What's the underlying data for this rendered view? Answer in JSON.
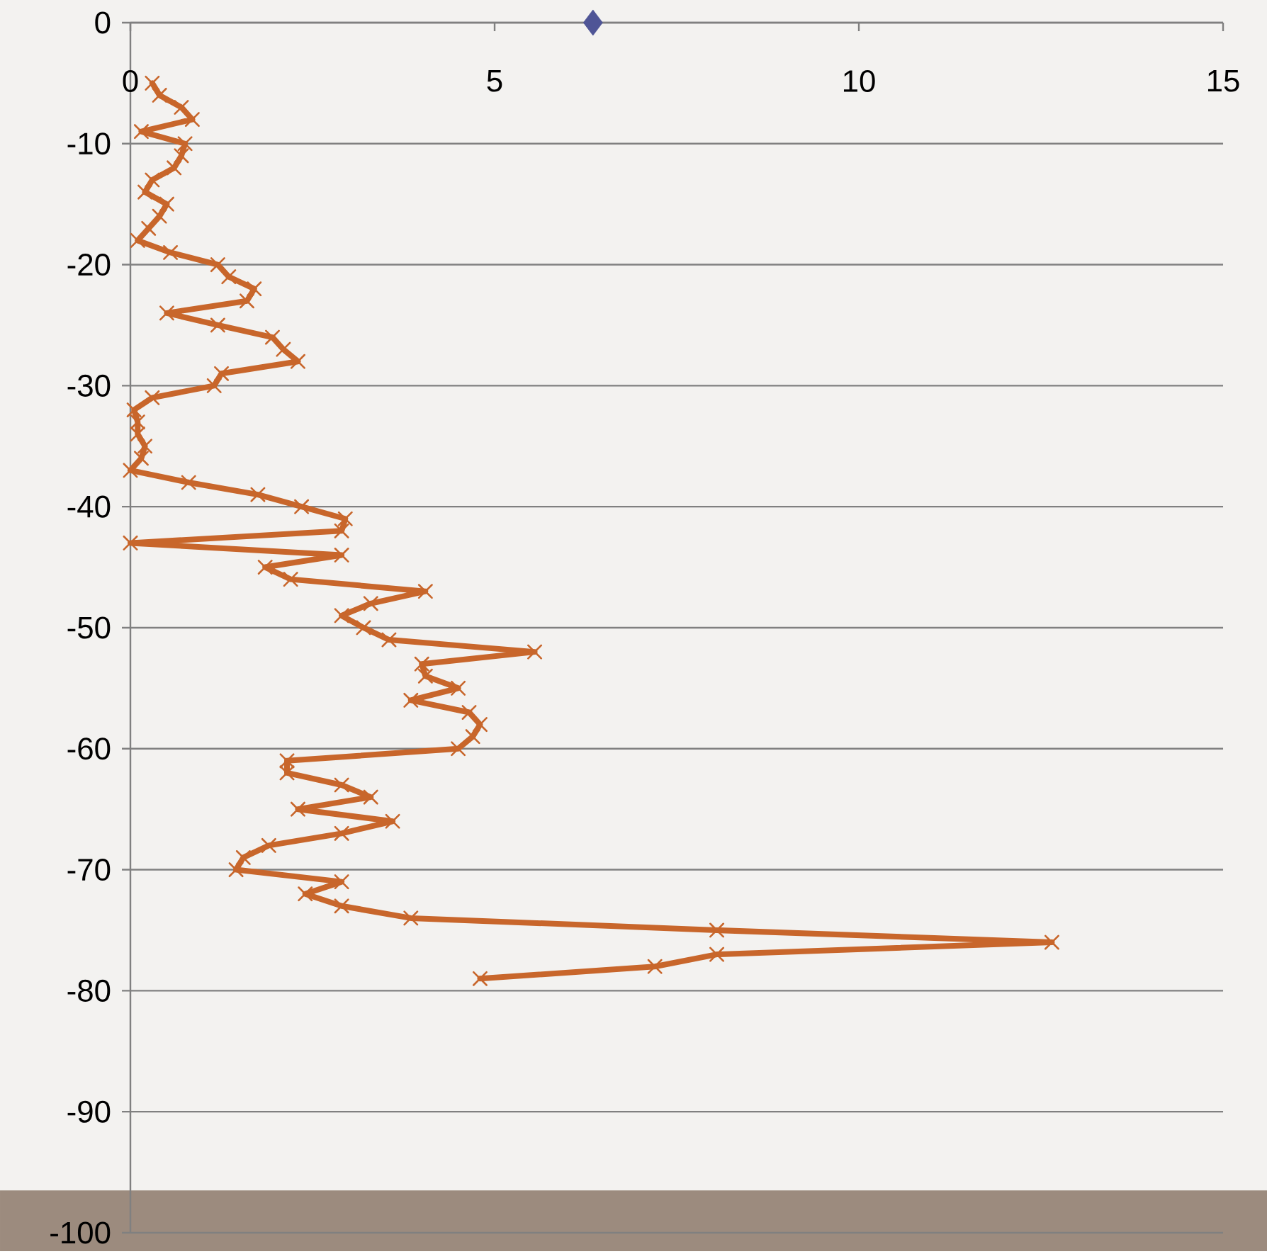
{
  "chart_data": {
    "type": "line",
    "series": [
      {
        "color": "#c8662b",
        "marker": "cross",
        "line_style": "solid",
        "x": [
          0.3,
          0.4,
          0.7,
          0.85,
          0.15,
          0.75,
          0.7,
          0.6,
          0.3,
          0.2,
          0.5,
          0.4,
          0.25,
          0.1,
          0.55,
          1.2,
          1.35,
          1.7,
          1.6,
          0.5,
          1.2,
          1.95,
          2.1,
          2.3,
          1.25,
          1.15,
          0.3,
          0.05,
          0.1,
          0.1,
          0.2,
          0.15,
          0,
          0.8,
          1.75,
          2.35,
          2.95,
          2.9,
          0,
          2.9,
          1.85,
          2.2,
          4.05,
          3.3,
          2.9,
          3.2,
          3.55,
          5.55,
          4.0,
          4.05,
          4.5,
          3.85,
          4.65,
          4.8,
          4.7,
          4.5,
          2.15,
          2.15,
          2.9,
          3.3,
          2.3,
          3.6,
          2.9,
          1.9,
          1.55,
          1.45,
          2.9,
          2.4,
          2.9,
          3.85,
          8.05,
          12.65,
          8.05,
          7.2,
          4.8
        ],
        "values": [
          -5,
          -6,
          -7,
          -8,
          -9,
          -10,
          -11,
          -12,
          -13,
          -14,
          -15,
          -16,
          -17,
          -18,
          -19,
          -20,
          -21,
          -22,
          -23,
          -24,
          -25,
          -26,
          -27,
          -28,
          -29,
          -30,
          -31,
          -32,
          -33,
          -34,
          -35,
          -36,
          -37,
          -38,
          -39,
          -40,
          -41,
          -42,
          -43,
          -44,
          -45,
          -46,
          -47,
          -48,
          -49,
          -50,
          -51,
          -52,
          -53,
          -54,
          -55,
          -56,
          -57,
          -58,
          -59,
          -60,
          -61,
          -62,
          -63,
          -64,
          -65,
          -66,
          -67,
          -68,
          -69,
          -70,
          -71,
          -72,
          -73,
          -74,
          -75,
          -76,
          -77,
          -78,
          -79
        ]
      },
      {
        "type": "scatter",
        "color": "#4f5596",
        "marker": "diamond",
        "x": [
          6.35
        ],
        "values": [
          0
        ]
      }
    ],
    "xlim": [
      0,
      15
    ],
    "ylim": [
      -100,
      0
    ],
    "xticks": [
      0,
      5,
      10,
      15
    ],
    "yticks": [
      0,
      -10,
      -20,
      -30,
      -40,
      -50,
      -60,
      -70,
      -80,
      -90,
      -100
    ],
    "grid": "y",
    "bands": [
      {
        "axis": "y",
        "from": -96.5,
        "to": -100,
        "color": "#9c8b7e"
      }
    ]
  }
}
